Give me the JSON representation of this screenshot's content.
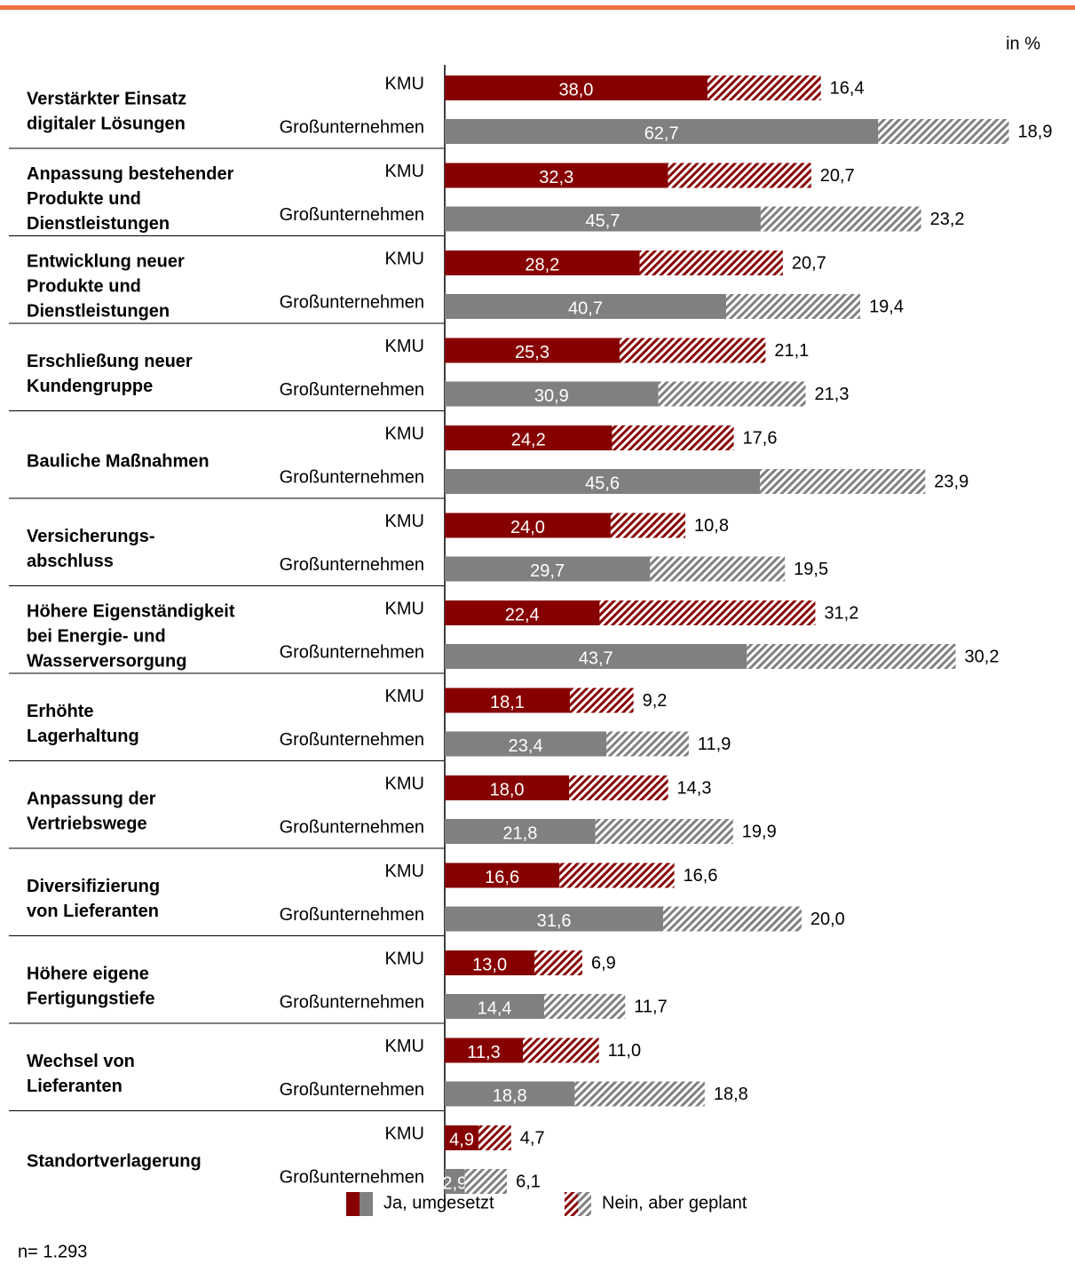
{
  "chart_data": {
    "type": "grouped_stacked_bar_horizontal",
    "unit_label": "in %",
    "note": "n= 1.293",
    "categories": [
      [
        "Verstärkter Einsatz",
        "digitaler Lösungen"
      ],
      [
        "Anpassung bestehender",
        "Produkte und",
        "Dienstleistungen"
      ],
      [
        "Entwicklung neuer",
        "Produkte und",
        "Dienstleistungen"
      ],
      [
        "Erschließung neuer",
        "Kundengruppe"
      ],
      [
        "Bauliche Maßnahmen"
      ],
      [
        "Versicherungs-",
        "abschluss"
      ],
      [
        "Höhere Eigenständigkeit",
        "bei Energie- und",
        "Wasserversorgung"
      ],
      [
        "Erhöhte",
        "Lagerhaltung"
      ],
      [
        "Anpassung der",
        "Vertriebswege"
      ],
      [
        "Diversifizierung",
        "von Lieferanten"
      ],
      [
        "Höhere eigene",
        "Fertigungstiefe"
      ],
      [
        "Wechsel von",
        "Lieferanten"
      ],
      [
        "Standortverlagerung"
      ]
    ],
    "subgroups": [
      "KMU",
      "Großunternehmen"
    ],
    "subgroup_colors": [
      "#870000",
      "#808080"
    ],
    "series": [
      {
        "name": "Ja, umgesetzt",
        "pattern": "solid",
        "values": [
          [
            38.0,
            62.7
          ],
          [
            32.3,
            45.7
          ],
          [
            28.2,
            40.7
          ],
          [
            25.3,
            30.9
          ],
          [
            24.2,
            45.6
          ],
          [
            24.0,
            29.7
          ],
          [
            22.4,
            43.7
          ],
          [
            18.1,
            23.4
          ],
          [
            18.0,
            21.8
          ],
          [
            16.6,
            31.6
          ],
          [
            13.0,
            14.4
          ],
          [
            11.3,
            18.8
          ],
          [
            4.9,
            2.9
          ]
        ],
        "value_labels": [
          [
            "38,0",
            "62,7"
          ],
          [
            "32,3",
            "45,7"
          ],
          [
            "28,2",
            "40,7"
          ],
          [
            "25,3",
            "30,9"
          ],
          [
            "24,2",
            "45,6"
          ],
          [
            "24,0",
            "29,7"
          ],
          [
            "22,4",
            "43,7"
          ],
          [
            "18,1",
            "23,4"
          ],
          [
            "18,0",
            "21,8"
          ],
          [
            "16,6",
            "31,6"
          ],
          [
            "13,0",
            "14,4"
          ],
          [
            "11,3",
            "18,8"
          ],
          [
            "4,9",
            "2,9"
          ]
        ]
      },
      {
        "name": "Nein, aber geplant",
        "pattern": "hatch",
        "values": [
          [
            16.4,
            18.9
          ],
          [
            20.7,
            23.2
          ],
          [
            20.7,
            19.4
          ],
          [
            21.1,
            21.3
          ],
          [
            17.6,
            23.9
          ],
          [
            10.8,
            19.5
          ],
          [
            31.2,
            30.2
          ],
          [
            9.2,
            11.9
          ],
          [
            14.3,
            19.9
          ],
          [
            16.6,
            20.0
          ],
          [
            6.9,
            11.7
          ],
          [
            11.0,
            18.8
          ],
          [
            4.7,
            6.1
          ]
        ],
        "value_labels": [
          [
            "16,4",
            "18,9"
          ],
          [
            "20,7",
            "23,2"
          ],
          [
            "20,7",
            "19,4"
          ],
          [
            "21,1",
            "21,3"
          ],
          [
            "17,6",
            "23,9"
          ],
          [
            "10,8",
            "19,5"
          ],
          [
            "31,2",
            "30,2"
          ],
          [
            "9,2",
            "11,9"
          ],
          [
            "14,3",
            "19,9"
          ],
          [
            "16,6",
            "20,0"
          ],
          [
            "6,9",
            "11,7"
          ],
          [
            "11,0",
            "18,8"
          ],
          [
            "4,7",
            "6,1"
          ]
        ]
      }
    ],
    "xlim": [
      0,
      85
    ]
  }
}
